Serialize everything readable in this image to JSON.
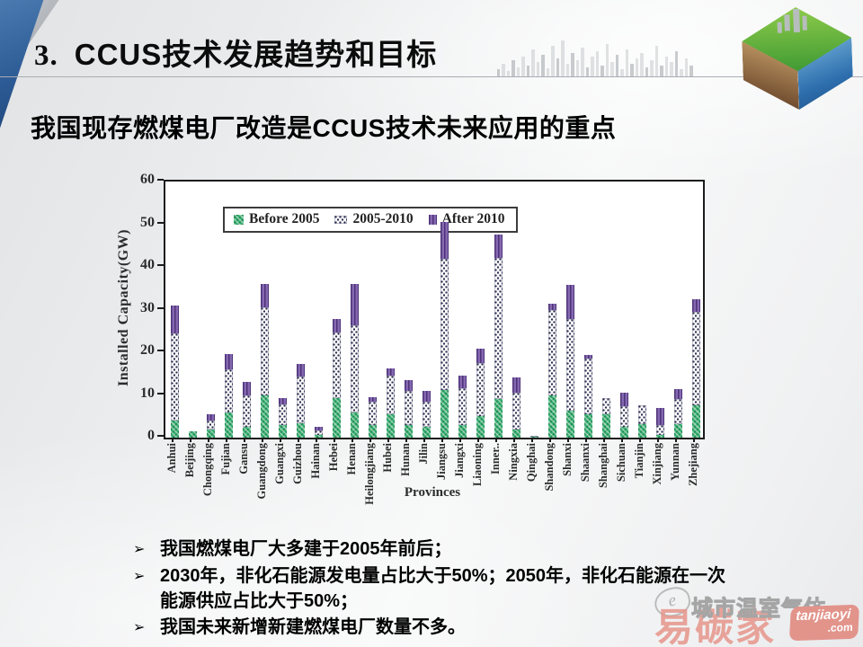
{
  "slide": {
    "title_number": "3.",
    "title_text": "CCUS技术发展趋势和目标",
    "subtitle": "我国现存燃煤电厂改造是CCUS技术未来应用的重点"
  },
  "chart_data": {
    "type": "bar",
    "stacked": true,
    "xlabel": "Provinces",
    "ylabel": "Installed Capacity(GW)",
    "ylim": [
      0,
      60
    ],
    "yticks": [
      0,
      10,
      20,
      30,
      40,
      50,
      60
    ],
    "grid": false,
    "legend_position": "top-left-inside",
    "categories": [
      "Anhui",
      "Beijing",
      "Chongqing",
      "Fujian",
      "Gansu",
      "Guangdong",
      "Guangxi",
      "Guizhou",
      "Hainan",
      "Hebei",
      "Henan",
      "Heilongjiang",
      "Hubei",
      "Hunan",
      "Jilin",
      "Jiangsu",
      "Jiangxi",
      "Liaoning",
      "Inner..",
      "Ningxia",
      "Qinghai",
      "Shandong",
      "Shanxi",
      "Shaanxi",
      "Shanghai",
      "Sichuan",
      "Tianjin",
      "Xinjiang",
      "Yunnan",
      "Zhejiang"
    ],
    "series": [
      {
        "name": "Before 2005",
        "color": "#3bb273",
        "pattern": "checker",
        "values": [
          4,
          1.5,
          2,
          6,
          2.5,
          10,
          3,
          3.3,
          0.7,
          9.3,
          6,
          3,
          5.5,
          3,
          2.5,
          11.2,
          3,
          5,
          9.1,
          2,
          0.2,
          9.8,
          6.3,
          5.4,
          5.4,
          2.5,
          3.2,
          0.7,
          3.2,
          7.5
        ]
      },
      {
        "name": "2005-2010",
        "color": "#ffffff",
        "pattern": "dots",
        "values": [
          20.5,
          0,
          2,
          10,
          7.5,
          20.5,
          4.7,
          11,
          0.9,
          15.4,
          20.3,
          5.5,
          9,
          8,
          6,
          30.6,
          8.5,
          12.5,
          33,
          8.5,
          0.3,
          20,
          21.4,
          13.2,
          3.9,
          4.9,
          4.3,
          2.3,
          5.9,
          21.9
        ]
      },
      {
        "name": "After 2010",
        "color": "#8468b0",
        "pattern": "vstripes",
        "values": [
          6.5,
          0,
          1.5,
          3.5,
          3,
          5.5,
          1.6,
          3,
          0.9,
          3,
          9.7,
          1,
          1.8,
          2.5,
          2.5,
          8.7,
          3,
          3.3,
          5.4,
          3.7,
          0,
          1.6,
          8.2,
          0.8,
          0,
          3.1,
          0,
          4,
          2.3,
          3
        ]
      }
    ]
  },
  "bullets": {
    "marker": "➢",
    "items": [
      "我国燃煤电厂大多建于2005年前后；",
      "2030年，非化石能源发电量占比大于50%；2050年，非化石能源在一次能源供应占比大于50%；",
      "我国未来新增新建燃煤电厂数量不多。"
    ]
  },
  "watermark": {
    "scribble": "e",
    "outline_text": "城市温室气体",
    "brand_text": "易碳家",
    "badge_line1": "tanjiaoyi",
    "badge_line2": ".com",
    "brand_color": "#e6958a"
  }
}
